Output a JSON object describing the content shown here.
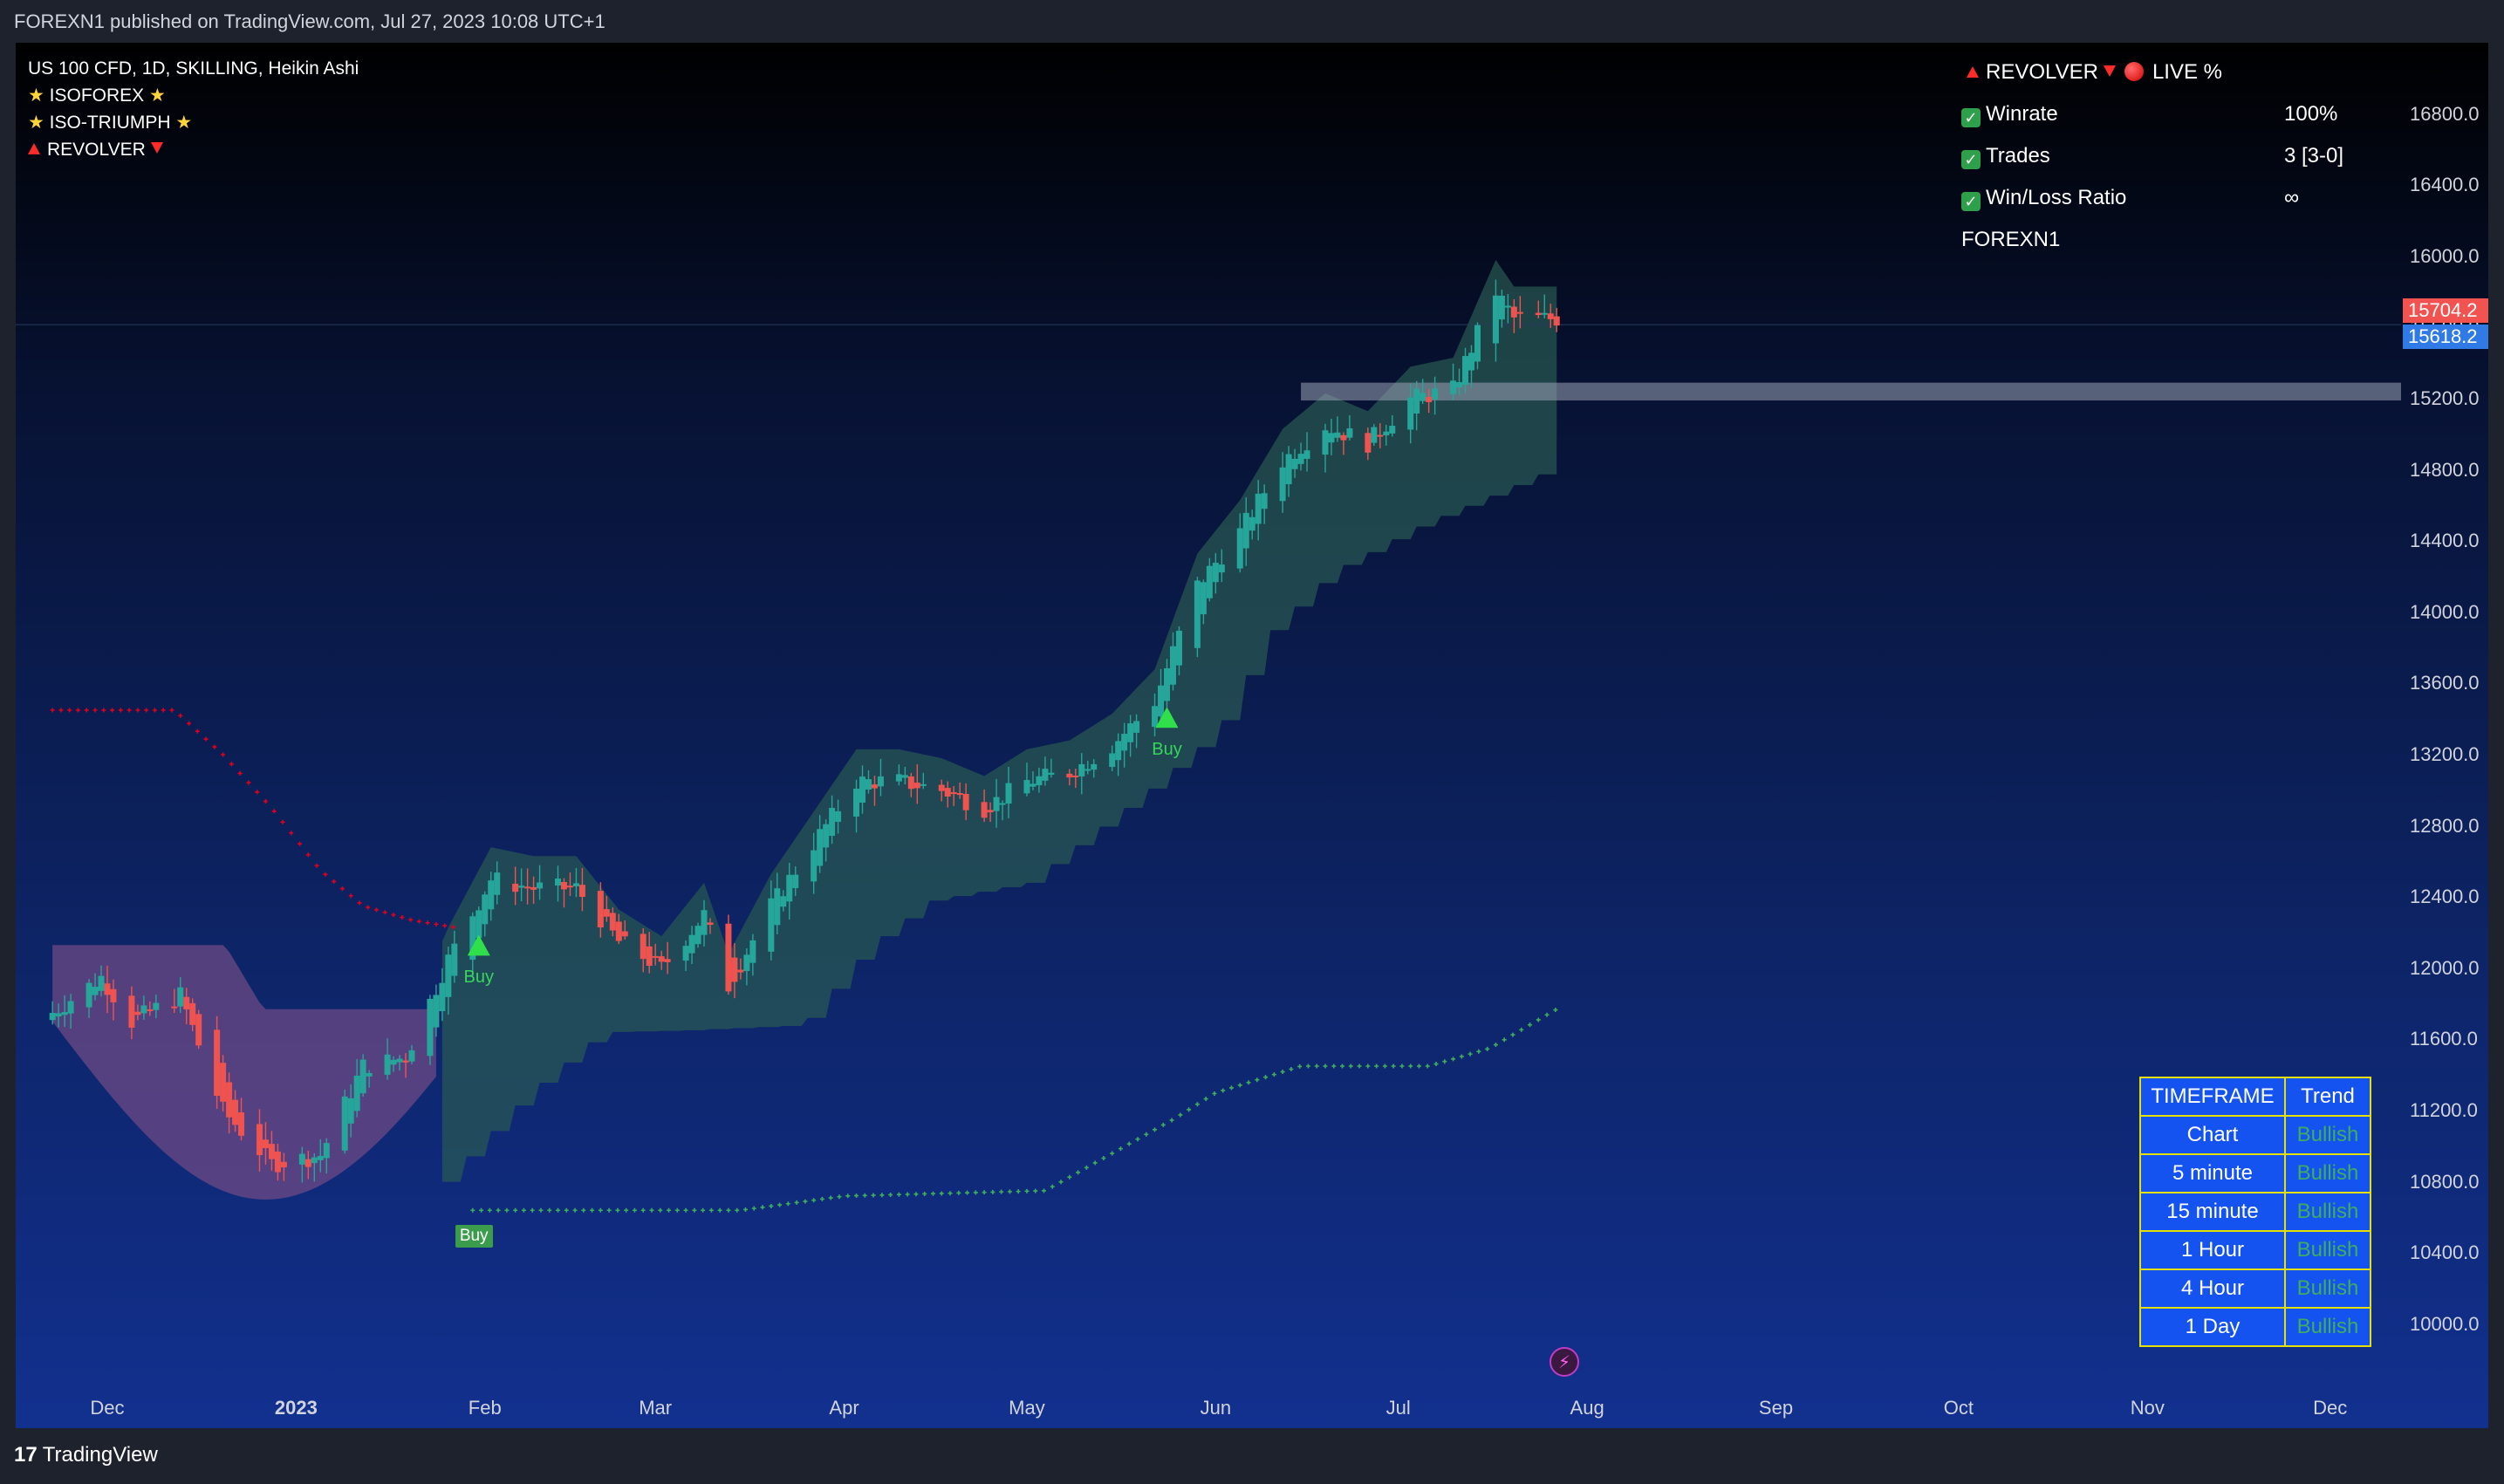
{
  "header": {
    "published": "FOREXN1 published on TradingView.com, Jul 27, 2023 10:08 UTC+1"
  },
  "legend": {
    "symbol": "US 100 CFD, 1D, SKILLING, Heikin Ashi",
    "indicator1": "ISOFOREX",
    "indicator2": "ISO-TRIUMPH",
    "indicator3": "REVOLVER"
  },
  "stats": {
    "title": "REVOLVER",
    "live": "LIVE %",
    "winrate_label": "Winrate",
    "winrate_value": "100%",
    "trades_label": "Trades",
    "trades_value": "3 [3-0]",
    "wl_label": "Win/Loss Ratio",
    "wl_value": "∞",
    "author": "FOREXN1"
  },
  "price_tags": {
    "last": "15704.2",
    "current": "15618.2",
    "last_color": "#f05350",
    "current_color": "#2f7ae5"
  },
  "timeframe_table": {
    "headers": [
      "TIMEFRAME",
      "Trend"
    ],
    "rows": [
      {
        "tf": "Chart",
        "trend": "Bullish"
      },
      {
        "tf": "5 minute",
        "trend": "Bullish"
      },
      {
        "tf": "15 minute",
        "trend": "Bullish"
      },
      {
        "tf": "1 Hour",
        "trend": "Bullish"
      },
      {
        "tf": "4 Hour",
        "trend": "Bullish"
      },
      {
        "tf": "1 Day",
        "trend": "Bullish"
      }
    ]
  },
  "signals": {
    "buy1": "Buy",
    "buy2": "Buy",
    "buy_box": "Buy"
  },
  "footer": {
    "brand": "TradingView"
  },
  "colors": {
    "bull": "#26a69a",
    "bear": "#ef5350",
    "stop_red": "#e0001b",
    "stop_green": "#3fae5c",
    "buy_signal": "#2fe04a",
    "bull_cloud": "#2a5a52",
    "bear_cloud": "#6e4a86"
  },
  "chart_data": {
    "type": "candlestick",
    "chart_style": "Heikin Ashi",
    "ylim": [
      9700,
      17200
    ],
    "y_ticks": [
      10000,
      10400,
      10800,
      11200,
      11600,
      12000,
      12400,
      12800,
      13200,
      13600,
      14000,
      14400,
      14800,
      15200,
      15600,
      16000,
      16400,
      16800
    ],
    "y_tick_labels": [
      "10000.0",
      "10400.0",
      "10800.0",
      "11200.0",
      "11600.0",
      "12000.0",
      "12400.0",
      "12800.0",
      "13200.0",
      "13600.0",
      "14000.0",
      "14400.0",
      "14800.0",
      "15200.0",
      "15600.0",
      "16000.0",
      "16400.0",
      "16800.0"
    ],
    "x_ticks": [
      {
        "label": "Dec",
        "date": "2022-12-01",
        "bold": false
      },
      {
        "label": "2023",
        "date": "2023-01-01",
        "bold": true
      },
      {
        "label": "Feb",
        "date": "2023-02-01",
        "bold": false
      },
      {
        "label": "Mar",
        "date": "2023-03-01",
        "bold": false
      },
      {
        "label": "Apr",
        "date": "2023-04-01",
        "bold": false
      },
      {
        "label": "May",
        "date": "2023-05-01",
        "bold": false
      },
      {
        "label": "Jun",
        "date": "2023-06-01",
        "bold": false
      },
      {
        "label": "Jul",
        "date": "2023-07-01",
        "bold": false
      },
      {
        "label": "Aug",
        "date": "2023-08-01",
        "bold": false
      },
      {
        "label": "Sep",
        "date": "2023-09-01",
        "bold": false
      },
      {
        "label": "Oct",
        "date": "2023-10-01",
        "bold": false
      },
      {
        "label": "Nov",
        "date": "2023-11-01",
        "bold": false
      },
      {
        "label": "Dec",
        "date": "2023-12-01",
        "bold": false
      }
    ],
    "close_anchors": [
      [
        "2022-11-22",
        11750
      ],
      [
        "2022-11-30",
        11950
      ],
      [
        "2022-12-05",
        11700
      ],
      [
        "2022-12-13",
        11850
      ],
      [
        "2022-12-20",
        11200
      ],
      [
        "2022-12-28",
        10900
      ],
      [
        "2023-01-05",
        10950
      ],
      [
        "2023-01-12",
        11450
      ],
      [
        "2023-01-19",
        11500
      ],
      [
        "2023-01-26",
        12050
      ],
      [
        "2023-02-02",
        12500
      ],
      [
        "2023-02-09",
        12450
      ],
      [
        "2023-02-16",
        12450
      ],
      [
        "2023-02-23",
        12150
      ],
      [
        "2023-03-02",
        12000
      ],
      [
        "2023-03-09",
        12300
      ],
      [
        "2023-03-13",
        11900
      ],
      [
        "2023-03-20",
        12350
      ],
      [
        "2023-03-27",
        12700
      ],
      [
        "2023-04-03",
        13050
      ],
      [
        "2023-04-10",
        13050
      ],
      [
        "2023-04-17",
        13000
      ],
      [
        "2023-04-24",
        12900
      ],
      [
        "2023-05-01",
        13050
      ],
      [
        "2023-05-08",
        13100
      ],
      [
        "2023-05-15",
        13250
      ],
      [
        "2023-05-22",
        13500
      ],
      [
        "2023-05-29",
        14150
      ],
      [
        "2023-06-05",
        14450
      ],
      [
        "2023-06-12",
        14850
      ],
      [
        "2023-06-19",
        15050
      ],
      [
        "2023-06-26",
        14950
      ],
      [
        "2023-07-03",
        15200
      ],
      [
        "2023-07-10",
        15250
      ],
      [
        "2023-07-17",
        15800
      ],
      [
        "2023-07-20",
        15650
      ],
      [
        "2023-07-27",
        15650
      ]
    ],
    "revolver_stop_red": [
      [
        "2022-11-22",
        13450
      ],
      [
        "2022-12-12",
        13450
      ],
      [
        "2022-12-20",
        13200
      ],
      [
        "2022-12-28",
        12900
      ],
      [
        "2023-01-05",
        12550
      ],
      [
        "2023-01-12",
        12350
      ],
      [
        "2023-01-20",
        12270
      ],
      [
        "2023-01-27",
        12230
      ]
    ],
    "revolver_stop_green": [
      [
        "2023-01-30",
        10640
      ],
      [
        "2023-03-15",
        10640
      ],
      [
        "2023-04-01",
        10720
      ],
      [
        "2023-05-04",
        10750
      ],
      [
        "2023-05-25",
        11150
      ],
      [
        "2023-06-01",
        11300
      ],
      [
        "2023-06-15",
        11450
      ],
      [
        "2023-07-06",
        11450
      ],
      [
        "2023-07-16",
        11550
      ],
      [
        "2023-07-27",
        11770
      ]
    ],
    "bear_cloud": {
      "start": "2022-11-22",
      "end": "2023-01-24",
      "top": [
        12130,
        11770
      ],
      "bottom": [
        11700,
        10700
      ]
    },
    "bull_cloud": {
      "start": "2023-01-25",
      "end": "2023-07-27",
      "bottom_anchors": [
        [
          "2023-01-25",
          10800
        ],
        [
          "2023-02-08",
          11300
        ],
        [
          "2023-02-20",
          11640
        ],
        [
          "2023-03-05",
          11650
        ],
        [
          "2023-03-25",
          11680
        ],
        [
          "2023-04-05",
          12130
        ],
        [
          "2023-04-15",
          12380
        ],
        [
          "2023-05-01",
          12480
        ],
        [
          "2023-05-20",
          12980
        ],
        [
          "2023-06-01",
          13330
        ],
        [
          "2023-06-10",
          13900
        ],
        [
          "2023-06-20",
          14230
        ],
        [
          "2023-07-05",
          14500
        ],
        [
          "2023-07-15",
          14640
        ],
        [
          "2023-07-27",
          14820
        ]
      ]
    },
    "resistance_zone": {
      "start": "2023-06-15",
      "top": 15290,
      "bottom": 15190
    },
    "buy_signals": [
      {
        "date": "2023-01-31",
        "price": 12120
      },
      {
        "date": "2023-05-24",
        "price": 13400
      }
    ],
    "buy_box": {
      "date": "2023-01-28",
      "price": 10540
    },
    "last_price": 15704.2,
    "current_price": 15618.2
  }
}
